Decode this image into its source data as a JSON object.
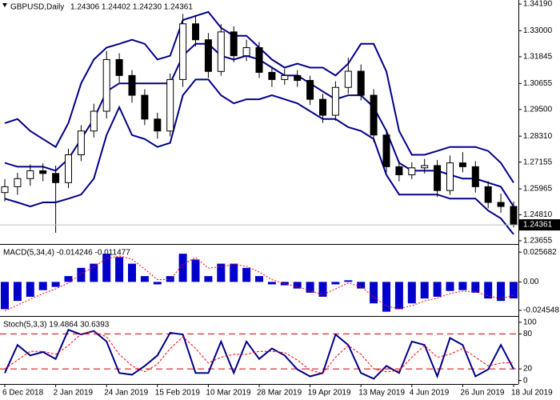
{
  "chart_data": [
    {
      "type": "candlestick",
      "title": "GBPUSD,Daily",
      "subtitle": "1.24306 1.24402 1.24230 1.24361",
      "open": [
        1.258,
        1.2606,
        1.2642,
        1.2677,
        1.2665,
        1.2624,
        1.2748,
        1.2854,
        1.2942,
        1.3172,
        1.3101,
        1.3013,
        1.2907,
        1.2854,
        1.3083,
        1.3331,
        1.326,
        1.3119,
        1.3295,
        1.3189,
        1.3225,
        1.3115,
        1.3083,
        1.3101,
        1.3079,
        1.2995,
        1.2924,
        1.3048,
        1.312,
        1.3013,
        1.2836,
        1.2695,
        1.2659,
        1.269,
        1.27,
        1.2589,
        1.2712,
        1.2695,
        1.2606,
        1.2536,
        1.2518
      ],
      "high": [
        1.264,
        1.2668,
        1.2705,
        1.271,
        1.27,
        1.2775,
        1.288,
        1.2975,
        1.321,
        1.32,
        1.3125,
        1.304,
        1.2935,
        1.311,
        1.3375,
        1.337,
        1.329,
        1.333,
        1.332,
        1.326,
        1.325,
        1.314,
        1.313,
        1.3125,
        1.31,
        1.302,
        1.3075,
        1.318,
        1.315,
        1.304,
        1.286,
        1.272,
        1.2715,
        1.273,
        1.2725,
        1.2745,
        1.276,
        1.272,
        1.263,
        1.2575,
        1.254
      ],
      "low": [
        1.254,
        1.257,
        1.261,
        1.263,
        1.2401,
        1.26,
        1.272,
        1.2825,
        1.291,
        1.307,
        1.298,
        1.288,
        1.282,
        1.283,
        1.305,
        1.323,
        1.309,
        1.31,
        1.316,
        1.3165,
        1.309,
        1.305,
        1.306,
        1.305,
        1.297,
        1.289,
        1.29,
        1.302,
        1.299,
        1.2805,
        1.267,
        1.263,
        1.264,
        1.2665,
        1.256,
        1.257,
        1.267,
        1.258,
        1.251,
        1.249,
        1.2425
      ],
      "close": [
        1.2606,
        1.2642,
        1.2677,
        1.2665,
        1.2624,
        1.2748,
        1.2854,
        1.2942,
        1.3172,
        1.3101,
        1.3013,
        1.2907,
        1.2854,
        1.3083,
        1.3331,
        1.326,
        1.3119,
        1.3295,
        1.3189,
        1.3225,
        1.3115,
        1.3083,
        1.3101,
        1.3079,
        1.2995,
        1.2924,
        1.3048,
        1.312,
        1.3013,
        1.2836,
        1.2695,
        1.2659,
        1.269,
        1.27,
        1.2589,
        1.2712,
        1.2695,
        1.2606,
        1.2536,
        1.2518,
        1.2436
      ],
      "series": [
        {
          "color": "#00008b",
          "values": [
            1.2889,
            1.2907,
            1.2854,
            1.2818,
            1.2783,
            1.2889,
            1.3066,
            1.3172,
            1.3225,
            1.3242,
            1.326,
            1.3242,
            1.3172,
            1.3189,
            1.3348,
            1.3366,
            1.3384,
            1.3313,
            1.3278,
            1.3278,
            1.3225,
            1.3172,
            1.3136,
            1.3154,
            1.3136,
            1.3136,
            1.3101,
            1.3154,
            1.3242,
            1.3242,
            1.3119,
            1.2854,
            1.2748,
            1.2748,
            1.2765,
            1.2783,
            1.2783,
            1.2783,
            1.2765,
            1.2712,
            1.2624
          ]
        },
        {
          "color": "#00008b",
          "values": [
            1.2712,
            1.2695,
            1.2695,
            1.2695,
            1.2677,
            1.273,
            1.2818,
            1.2907,
            1.303,
            1.3066,
            1.3066,
            1.3066,
            1.3066,
            1.3066,
            1.3189,
            1.3242,
            1.3242,
            1.3189,
            1.3172,
            1.3189,
            1.3172,
            1.3136,
            1.3101,
            1.3101,
            1.3066,
            1.303,
            1.2995,
            1.3013,
            1.3013,
            1.296,
            1.2854,
            1.2712,
            1.2677,
            1.2677,
            1.2677,
            1.2659,
            1.2642,
            1.2642,
            1.2624,
            1.2606,
            1.2518
          ]
        },
        {
          "color": "#00008b",
          "values": [
            1.2553,
            1.2536,
            1.2518,
            1.2536,
            1.2536,
            1.2553,
            1.2571,
            1.2642,
            1.2836,
            1.296,
            1.2836,
            1.2818,
            1.2783,
            1.2801,
            1.3013,
            1.3083,
            1.3083,
            1.3013,
            1.2977,
            1.2995,
            1.2995,
            1.3013,
            1.2995,
            1.2977,
            1.2942,
            1.2907,
            1.2907,
            1.2871,
            1.2854,
            1.2818,
            1.2659,
            1.2571,
            1.2571,
            1.2571,
            1.2571,
            1.2553,
            1.2553,
            1.2553,
            1.25,
            1.2465,
            1.2394
          ]
        }
      ],
      "last_price": 1.24361,
      "ylim": [
        1.2351,
        1.3437
      ],
      "yticks": [
        {
          "value": 1.3419,
          "label": "1.34190"
        },
        {
          "value": 1.33,
          "label": "1.33000"
        },
        1.31845,
        1.30655,
        {
          "value": 1.295,
          "label": "1.29500"
        },
        {
          "value": 1.2831,
          "label": "1.28310"
        },
        1.27155,
        1.25965,
        {
          "value": 1.2481,
          "label": "1.24810"
        },
        1.23655
      ]
    },
    {
      "type": "macd",
      "title": "MACD(5,34,4) -0.014246 -0.011477",
      "series": [
        {
          "color": "#0000cd",
          "values": [
            -0.0235,
            -0.0164,
            -0.0128,
            -0.0071,
            -0.0043,
            0.005,
            0.0121,
            0.0157,
            0.0243,
            0.0214,
            0.0157,
            0.005,
            -0.0021,
            0.005,
            0.0243,
            0.0193,
            0.005,
            0.0157,
            0.0157,
            0.0121,
            0.005,
            -0.0021,
            -0.0029,
            -0.0057,
            -0.0093,
            -0.0128,
            -0.0021,
            0.0014,
            -0.0057,
            -0.0185,
            -0.0257,
            -0.0235,
            -0.0185,
            -0.0143,
            -0.0128,
            -0.0078,
            -0.0071,
            -0.0093,
            -0.0143,
            -0.0164,
            -0.014246
          ]
        },
        {
          "color": "#ff0000",
          "values": [
            -0.025,
            -0.02,
            -0.015,
            -0.01,
            -0.006,
            -0.001,
            0.007,
            0.013,
            0.02,
            0.0225,
            0.0195,
            0.011,
            0.002,
            0.002,
            0.015,
            0.021,
            0.012,
            0.013,
            0.015,
            0.0135,
            0.0085,
            0.002,
            -0.0015,
            -0.004,
            -0.0075,
            -0.011,
            -0.006,
            -0.001,
            -0.004,
            -0.013,
            -0.021,
            -0.023,
            -0.0205,
            -0.0165,
            -0.014,
            -0.01,
            -0.008,
            -0.0085,
            -0.012,
            -0.0145,
            -0.011477
          ]
        }
      ],
      "ylim": [
        -0.0294,
        0.0313
      ],
      "yticks": [
        0.025682,
        {
          "value": 0,
          "label": "0.00"
        },
        -0.024548
      ]
    },
    {
      "type": "stochastic",
      "title": "Stoch(5,3,3) 19.4864 30.6393",
      "series": [
        {
          "color": "#00008b",
          "values": [
            13,
            61,
            43,
            49,
            37,
            87,
            79,
            85,
            67,
            13,
            10,
            25,
            43,
            82,
            79,
            13,
            13,
            67,
            13,
            67,
            37,
            55,
            43,
            19,
            7,
            13,
            79,
            61,
            13,
            3,
            25,
            13,
            67,
            61,
            7,
            73,
            61,
            7,
            19,
            61,
            19.4864
          ]
        },
        {
          "color": "#ff0000",
          "values": [
            20,
            35,
            50,
            50,
            45,
            60,
            80,
            84,
            75,
            45,
            25,
            15,
            28,
            55,
            75,
            55,
            30,
            40,
            45,
            45,
            50,
            50,
            48,
            35,
            18,
            12,
            40,
            60,
            45,
            20,
            15,
            17,
            40,
            60,
            40,
            45,
            55,
            40,
            25,
            30,
            30.6393
          ]
        }
      ],
      "levels": [
        80,
        20
      ],
      "ylim": [
        -6,
        108
      ],
      "yticks": [
        100,
        80,
        20,
        0
      ],
      "categories": [
        "6 Dec 2018",
        null,
        null,
        null,
        "2 Jan 2019",
        null,
        null,
        null,
        "24 Jan 2019",
        null,
        null,
        null,
        "15 Feb 2019",
        null,
        null,
        null,
        "10 Mar 2019",
        null,
        null,
        null,
        "28 Mar 2019",
        null,
        null,
        null,
        "19 Apr 2019",
        null,
        null,
        null,
        "13 May 2019",
        null,
        null,
        null,
        "4 Jun 2019",
        null,
        null,
        null,
        "26 Jun 2019",
        null,
        null,
        null,
        "18 Jul 2019"
      ]
    }
  ]
}
